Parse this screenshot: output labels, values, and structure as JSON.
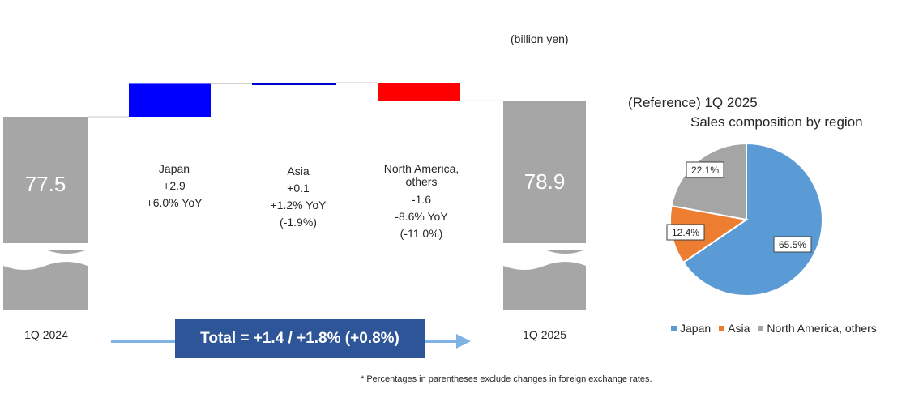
{
  "unit_label": "(billion yen)",
  "waterfall": {
    "start": {
      "label": "1Q 2024",
      "value": 77.5,
      "value_text": "77.5"
    },
    "end": {
      "label": "1Q 2025",
      "value": 78.9,
      "value_text": "78.9"
    },
    "steps": [
      {
        "name": "Japan",
        "lines": [
          "Japan",
          "+2.9",
          "+6.0% YoY"
        ],
        "value": 2.9,
        "color": "#0000ff"
      },
      {
        "name": "Asia",
        "lines": [
          "Asia",
          "+0.1",
          "+1.2% YoY",
          "(-1.9%)"
        ],
        "value": 0.1,
        "color": "#0000cc"
      },
      {
        "name": "North America, others",
        "lines": [
          "North America,",
          "others",
          "-1.6",
          "-8.6% YoY",
          "(-11.0%)"
        ],
        "value": -1.6,
        "color": "#ff0000"
      }
    ],
    "total_text": "Total = +1.4 / +1.8% (+0.8%)"
  },
  "pie": {
    "title_line1": "(Reference) 1Q 2025",
    "title_line2": "Sales composition by region",
    "slices": [
      {
        "name": "Japan",
        "value": 65.5,
        "label": "65.5%",
        "color": "#5b9bd5"
      },
      {
        "name": "Asia",
        "value": 12.4,
        "label": "12.4%",
        "color": "#ed7d31"
      },
      {
        "name": "North America, others",
        "value": 22.1,
        "label": "22.1%",
        "color": "#a5a5a5"
      }
    ]
  },
  "chart_data": [
    {
      "type": "bar",
      "title": "",
      "categories": [
        "1Q 2024",
        "Japan",
        "Asia",
        "North America, others",
        "1Q 2025"
      ],
      "values": [
        77.5,
        2.9,
        0.1,
        -1.6,
        78.9
      ],
      "unit": "(billion yen)",
      "annotations": [
        "+6.0% YoY",
        "+1.2% YoY",
        "(-1.9%)",
        "-8.6% YoY",
        "(-11.0%)",
        "Total = +1.4 / +1.8% (+0.8%)"
      ]
    },
    {
      "type": "pie",
      "title": "(Reference) 1Q 2025 Sales composition by region",
      "categories": [
        "Japan",
        "Asia",
        "North America, others"
      ],
      "values": [
        65.5,
        12.4,
        22.1
      ],
      "legend": "bottom"
    }
  ],
  "footnote": "* Percentages in parentheses exclude changes in foreign exchange rates."
}
